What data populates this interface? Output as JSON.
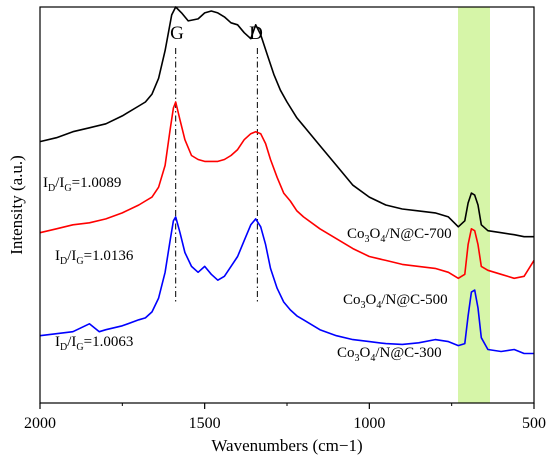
{
  "chart_data": {
    "type": "line",
    "title": "",
    "xlabel": "Wavenumbers (cm−1)",
    "ylabel": "Intensity (a.u.)",
    "xlim": [
      2000,
      500
    ],
    "x_reversed": true,
    "y_ticks_shown": false,
    "xticks": [
      2000,
      1500,
      1000,
      500
    ],
    "grid": false,
    "peaks": [
      {
        "label": "G",
        "x": 1588
      },
      {
        "label": "D",
        "x": 1340
      }
    ],
    "highlight_band": {
      "x_from": 720,
      "x_to": 630,
      "color": "#d6f5a8"
    },
    "series": [
      {
        "name": "Co3O4/N@C-700",
        "label_parts": [
          "Co",
          "3",
          "O",
          "4",
          "/N@C-700"
        ],
        "ratio_parts": [
          "I",
          "D",
          "/I",
          "G",
          "=1.0089"
        ],
        "color": "#000000",
        "x": [
          2000,
          1950,
          1900,
          1850,
          1800,
          1750,
          1700,
          1680,
          1660,
          1640,
          1620,
          1600,
          1588,
          1570,
          1550,
          1520,
          1500,
          1480,
          1460,
          1440,
          1420,
          1400,
          1380,
          1360,
          1345,
          1330,
          1310,
          1290,
          1270,
          1250,
          1220,
          1200,
          1150,
          1100,
          1050,
          1000,
          950,
          900,
          850,
          800,
          760,
          730,
          710,
          700,
          690,
          680,
          670,
          660,
          640,
          600,
          560,
          530,
          500
        ],
        "values": [
          0.66,
          0.67,
          0.685,
          0.695,
          0.705,
          0.725,
          0.75,
          0.76,
          0.78,
          0.82,
          0.89,
          0.98,
          1.0,
          0.985,
          0.965,
          0.97,
          0.985,
          0.99,
          0.985,
          0.975,
          0.96,
          0.955,
          0.935,
          0.92,
          0.955,
          0.93,
          0.88,
          0.83,
          0.79,
          0.76,
          0.72,
          0.7,
          0.65,
          0.6,
          0.55,
          0.52,
          0.5,
          0.49,
          0.485,
          0.48,
          0.47,
          0.445,
          0.46,
          0.505,
          0.53,
          0.525,
          0.5,
          0.45,
          0.435,
          0.43,
          0.425,
          0.42,
          0.42
        ]
      },
      {
        "name": "Co3O4/N@C-500",
        "label_parts": [
          "Co",
          "3",
          "O",
          "4",
          "/N@C-500"
        ],
        "ratio_parts": [
          "I",
          "D",
          "/I",
          "G",
          "=1.0136"
        ],
        "color": "#ff0000",
        "x": [
          2000,
          1950,
          1900,
          1850,
          1800,
          1750,
          1700,
          1680,
          1660,
          1640,
          1620,
          1605,
          1595,
          1588,
          1575,
          1560,
          1540,
          1520,
          1500,
          1480,
          1460,
          1440,
          1420,
          1400,
          1380,
          1360,
          1345,
          1330,
          1315,
          1300,
          1280,
          1260,
          1240,
          1220,
          1200,
          1150,
          1100,
          1050,
          1000,
          950,
          900,
          850,
          800,
          760,
          730,
          710,
          700,
          690,
          680,
          670,
          660,
          640,
          600,
          560,
          530,
          500
        ],
        "values": [
          0.43,
          0.44,
          0.45,
          0.455,
          0.465,
          0.48,
          0.5,
          0.51,
          0.52,
          0.545,
          0.6,
          0.69,
          0.745,
          0.76,
          0.715,
          0.665,
          0.625,
          0.615,
          0.61,
          0.61,
          0.61,
          0.615,
          0.625,
          0.64,
          0.665,
          0.68,
          0.685,
          0.68,
          0.655,
          0.615,
          0.57,
          0.53,
          0.51,
          0.485,
          0.47,
          0.44,
          0.415,
          0.39,
          0.37,
          0.36,
          0.35,
          0.345,
          0.34,
          0.33,
          0.315,
          0.325,
          0.4,
          0.44,
          0.435,
          0.4,
          0.345,
          0.335,
          0.325,
          0.315,
          0.32,
          0.36
        ]
      },
      {
        "name": "Co3O4/N@C-300",
        "label_parts": [
          "Co",
          "3",
          "O",
          "4",
          "/N@C-300"
        ],
        "ratio_parts": [
          "I",
          "D",
          "/I",
          "G",
          "=1.0063"
        ],
        "color": "#0000ff",
        "x": [
          2000,
          1950,
          1900,
          1850,
          1820,
          1800,
          1750,
          1700,
          1680,
          1660,
          1640,
          1620,
          1605,
          1595,
          1588,
          1575,
          1560,
          1540,
          1520,
          1500,
          1480,
          1460,
          1440,
          1420,
          1400,
          1380,
          1360,
          1345,
          1330,
          1315,
          1300,
          1280,
          1260,
          1240,
          1220,
          1200,
          1150,
          1100,
          1050,
          1000,
          950,
          900,
          850,
          800,
          760,
          730,
          710,
          700,
          690,
          680,
          670,
          660,
          640,
          600,
          560,
          530,
          500
        ],
        "values": [
          0.17,
          0.175,
          0.18,
          0.2,
          0.18,
          0.185,
          0.195,
          0.21,
          0.215,
          0.23,
          0.265,
          0.33,
          0.41,
          0.46,
          0.47,
          0.43,
          0.38,
          0.345,
          0.33,
          0.345,
          0.325,
          0.31,
          0.32,
          0.345,
          0.37,
          0.41,
          0.45,
          0.465,
          0.445,
          0.4,
          0.34,
          0.29,
          0.255,
          0.235,
          0.22,
          0.21,
          0.185,
          0.17,
          0.16,
          0.155,
          0.15,
          0.148,
          0.152,
          0.16,
          0.155,
          0.145,
          0.15,
          0.22,
          0.28,
          0.285,
          0.24,
          0.165,
          0.135,
          0.13,
          0.135,
          0.125,
          0.125
        ]
      }
    ]
  }
}
